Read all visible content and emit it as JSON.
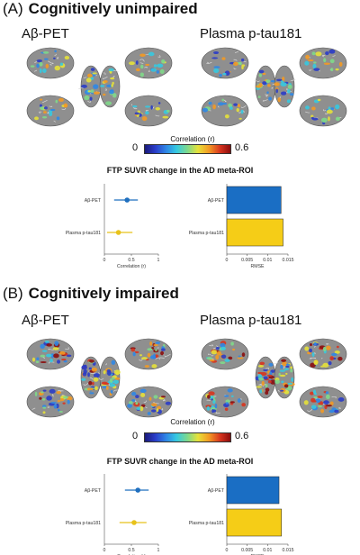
{
  "panels": [
    {
      "letter": "(A)",
      "title": "Cognitively unimpaired",
      "modality_left": "Aβ-PET",
      "modality_right": "Plasma p-tau181",
      "colorbar": {
        "label": "Correlation (r)",
        "min": "0",
        "max": "0.6"
      },
      "subtitle": "FTP SUVR change in the AD meta-ROI",
      "chart_data": [
        {
          "type": "scatter",
          "categories": [
            "Aβ-PET",
            "Plasma p-tau181"
          ],
          "values": [
            0.42,
            0.26
          ],
          "ci_low": [
            0.18,
            0.05
          ],
          "ci_high": [
            0.62,
            0.52
          ],
          "xlabel": "Correlation (r)",
          "xlim": [
            0,
            1
          ],
          "xticks": [
            "0",
            "0.5",
            "1"
          ],
          "colors": [
            "#1f6fbf",
            "#e8c21a"
          ]
        },
        {
          "type": "bar",
          "orientation": "horizontal",
          "categories": [
            "Aβ-PET",
            "Plasma p-tau181"
          ],
          "values": [
            0.0133,
            0.0138
          ],
          "xlabel": "RMSE",
          "xlim": [
            0,
            0.015
          ],
          "xticks": [
            "0",
            "0.005",
            "0.01",
            "0.015"
          ],
          "colors": [
            "#1a6ec4",
            "#f5cd17"
          ]
        }
      ]
    },
    {
      "letter": "(B)",
      "title": "Cognitively impaired",
      "modality_left": "Aβ-PET",
      "modality_right": "Plasma p-tau181",
      "colorbar": {
        "label": "Correlation (r)",
        "min": "0",
        "max": "0.6"
      },
      "subtitle": "FTP SUVR change in the AD meta-ROI",
      "chart_data": [
        {
          "type": "scatter",
          "categories": [
            "Aβ-PET",
            "Plasma p-tau181"
          ],
          "values": [
            0.62,
            0.55
          ],
          "ci_low": [
            0.38,
            0.28
          ],
          "ci_high": [
            0.82,
            0.78
          ],
          "xlabel": "Correlation (r)",
          "xlim": [
            0,
            1
          ],
          "xticks": [
            "0",
            "0.5",
            "1"
          ],
          "colors": [
            "#1f6fbf",
            "#e8c21a"
          ]
        },
        {
          "type": "bar",
          "orientation": "horizontal",
          "categories": [
            "Aβ-PET",
            "Plasma p-tau181"
          ],
          "values": [
            0.0128,
            0.0134
          ],
          "xlabel": "RMSE",
          "xlim": [
            0,
            0.015
          ],
          "xticks": [
            "0",
            "0.005",
            "0.01",
            "0.015"
          ],
          "colors": [
            "#1a6ec4",
            "#f5cd17"
          ]
        }
      ]
    }
  ]
}
